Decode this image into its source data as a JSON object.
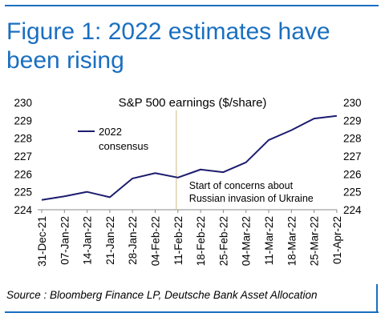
{
  "figure_title": "Figure 1: 2022 estimates have been rising",
  "source": "Source : Bloomberg Finance LP, Deutsche Bank Asset Allocation",
  "colors": {
    "accent": "#1a6fc0",
    "series": "#1c1c6e",
    "event_line": "#d9c49a"
  },
  "chart_data": {
    "type": "line",
    "title": "S&P 500 earnings ($/share)",
    "xlabel": "",
    "ylabel": "",
    "ylim": [
      224,
      230
    ],
    "y_ticks": [
      "224",
      "225",
      "226",
      "227",
      "228",
      "229",
      "230"
    ],
    "x_ticks": [
      "31-Dec-21",
      "07-Jan-22",
      "14-Jan-22",
      "21-Jan-22",
      "28-Jan-22",
      "04-Feb-22",
      "11-Feb-22",
      "18-Feb-22",
      "25-Feb-22",
      "04-Mar-22",
      "11-Mar-22",
      "18-Mar-22",
      "25-Mar-22",
      "01-Apr-22"
    ],
    "series": [
      {
        "name": "2022 consensus",
        "legend_lines": [
          "2022",
          "consensus"
        ],
        "x": [
          "31-Dec-21",
          "07-Jan-22",
          "14-Jan-22",
          "21-Jan-22",
          "28-Jan-22",
          "04-Feb-22",
          "11-Feb-22",
          "18-Feb-22",
          "25-Feb-22",
          "04-Mar-22",
          "11-Mar-22",
          "18-Mar-22",
          "25-Mar-22",
          "01-Apr-22"
        ],
        "values": [
          224.55,
          224.75,
          225.0,
          224.7,
          225.75,
          226.05,
          225.8,
          226.25,
          226.1,
          226.65,
          227.9,
          228.45,
          229.1,
          229.25
        ]
      }
    ],
    "event_marker": {
      "x": "14-Feb-22",
      "label_lines": [
        "Start of concerns about",
        "Russian invasion of Ukraine"
      ]
    },
    "grid": false,
    "legend_position": "top-left",
    "secondary_y_axis": true
  }
}
